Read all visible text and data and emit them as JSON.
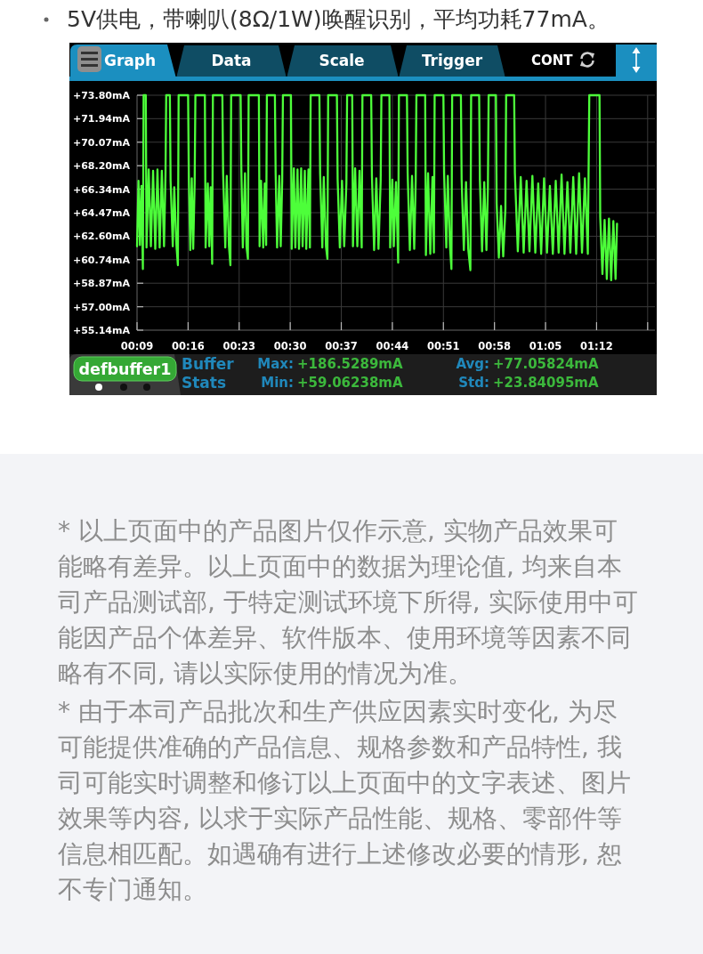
{
  "chart_data": {
    "type": "line",
    "title": "5V供电，带喇叭(8Ω/1W)唤醒识别，平均功耗77mA。",
    "annotations": [
      "Graph",
      "Data",
      "Scale",
      "Trigger",
      "CONT",
      "defbuffer1",
      "Buffer Stats",
      "Max: +186.5289mA",
      "Min: +59.06238mA",
      "Avg: +77.05824mA",
      "Std: +23.84095mA",
      "* 以上页面中的产品图片仅作示意, 实物产品效果可能略有差异。以上页面中的数据为理论值, 均来自本司产品测试部, 于特定测试环境下所得, 实际使用中可能因产品个体差异、软件版本、使用环境等因素不同略有不同, 请以实际使用的情况为准。",
      "* 由于本司产品批次和生产供应因素实时变化, 为尽可能提供准确的产品信息、规格参数和产品特性, 我司可能实时调整和修订以上页面中的文字表述、图片效果等内容, 以求于实际产品性能、规格、零部件等信息相匹配。如遇确有进行上述修改必要的情形, 恕不专门通知。"
    ],
    "x": [
      9.0,
      9.2,
      9.4,
      9.6,
      9.8,
      9.9,
      10.2,
      10.3,
      10.6,
      10.9,
      11.2,
      11.5,
      11.8,
      12.1,
      12.4,
      12.7,
      12.9,
      13.0,
      13.5,
      13.6,
      13.9,
      14.1,
      14.4,
      14.6,
      14.7,
      16.0,
      16.1,
      16.3,
      16.5,
      16.7,
      16.9,
      17.0,
      18.3,
      18.4,
      18.7,
      18.9,
      19.1,
      19.3,
      19.4,
      20.7,
      20.8,
      21.1,
      21.3,
      21.6,
      21.8,
      21.9,
      23.2,
      23.3,
      23.5,
      23.8,
      24.0,
      24.2,
      24.3,
      25.7,
      25.8,
      26.0,
      26.3,
      26.5,
      26.7,
      26.8,
      27.9,
      28.0,
      28.2,
      28.5,
      28.7,
      28.9,
      29.0,
      30.1,
      30.2,
      30.5,
      30.7,
      31.0,
      31.2,
      31.5,
      31.7,
      32.0,
      32.2,
      32.5,
      32.7,
      32.8,
      34.0,
      34.1,
      34.4,
      34.6,
      34.9,
      35.1,
      35.2,
      36.4,
      36.5,
      36.8,
      37.1,
      37.4,
      37.7,
      37.8,
      38.5,
      38.6,
      38.9,
      39.2,
      39.5,
      39.8,
      39.9,
      41.1,
      41.2,
      41.5,
      41.8,
      42.1,
      42.4,
      42.5,
      43.6,
      43.7,
      44.0,
      44.2,
      44.5,
      44.8,
      44.9,
      46.0,
      46.1,
      46.4,
      46.7,
      47.0,
      47.2,
      47.3,
      48.5,
      48.6,
      48.9,
      49.2,
      49.5,
      49.7,
      49.8,
      51.0,
      51.1,
      51.4,
      51.6,
      51.9,
      52.1,
      52.2,
      53.4,
      53.5,
      53.8,
      54.1,
      54.4,
      54.7,
      54.8,
      55.9,
      56.0,
      56.3,
      56.6,
      56.9,
      57.1,
      57.2,
      58.2,
      58.3,
      58.6,
      58.9,
      59.2,
      59.5,
      59.6,
      60.7,
      60.8,
      61.2,
      61.6,
      62.0,
      62.4,
      62.8,
      63.2,
      63.6,
      64.0,
      64.4,
      64.8,
      65.2,
      65.6,
      66.0,
      66.4,
      66.8,
      67.2,
      67.6,
      68.0,
      68.4,
      68.8,
      69.2,
      69.6,
      70.0,
      70.4,
      70.8,
      71.0,
      72.4,
      72.5,
      72.8,
      73.1,
      73.4,
      73.7,
      74.0,
      74.3,
      74.6,
      74.8
    ],
    "series": [
      {
        "color": "#4dff3a",
        "values": [
          61.8,
          67.0,
          61.9,
          66.6,
          60.0,
          73.8,
          73.8,
          61.7,
          67.9,
          61.8,
          67.8,
          61.6,
          67.9,
          61.7,
          67.8,
          61.8,
          67.5,
          73.8,
          73.8,
          67.0,
          61.8,
          66.5,
          61.9,
          60.3,
          73.8,
          73.8,
          67.4,
          61.5,
          67.2,
          61.6,
          66.8,
          73.8,
          73.8,
          61.7,
          66.8,
          61.8,
          66.5,
          60.4,
          73.8,
          73.8,
          67.6,
          61.7,
          67.4,
          61.8,
          60.3,
          73.8,
          73.8,
          67.9,
          61.7,
          67.6,
          61.8,
          60.8,
          73.8,
          73.8,
          61.8,
          67.0,
          61.7,
          66.8,
          61.9,
          73.8,
          73.8,
          67.6,
          61.7,
          67.4,
          61.8,
          67.0,
          73.8,
          73.8,
          61.6,
          68.0,
          61.7,
          67.9,
          61.6,
          68.0,
          61.8,
          67.8,
          61.6,
          67.9,
          61.7,
          73.8,
          73.8,
          67.6,
          61.7,
          67.3,
          61.8,
          60.8,
          73.8,
          73.8,
          67.1,
          61.7,
          67.0,
          61.8,
          66.8,
          73.8,
          73.8,
          61.8,
          68.0,
          61.8,
          67.8,
          61.7,
          73.8,
          73.8,
          67.4,
          61.5,
          67.2,
          61.6,
          67.0,
          73.8,
          73.8,
          61.7,
          67.1,
          61.8,
          66.9,
          60.5,
          73.8,
          73.8,
          67.6,
          61.5,
          67.4,
          61.6,
          67.0,
          73.8,
          73.8,
          61.1,
          67.6,
          61.2,
          67.3,
          61.3,
          73.8,
          73.8,
          67.6,
          61.7,
          67.4,
          61.8,
          60.0,
          73.8,
          73.8,
          67.1,
          61.5,
          66.9,
          61.6,
          59.9,
          73.8,
          73.8,
          67.1,
          61.4,
          66.9,
          61.5,
          66.5,
          73.8,
          73.8,
          65.2,
          60.9,
          65.0,
          61.0,
          64.8,
          73.8,
          73.8,
          67.6,
          61.4,
          67.3,
          61.3,
          67.0,
          61.4,
          67.4,
          61.3,
          66.8,
          61.2,
          67.2,
          61.3,
          66.6,
          61.2,
          67.0,
          61.3,
          67.5,
          61.2,
          66.9,
          61.3,
          67.3,
          61.2,
          67.6,
          61.3,
          67.2,
          61.2,
          73.8,
          73.8,
          64.1,
          59.6,
          63.9,
          59.2,
          64.0,
          59.1,
          63.8,
          59.2,
          63.6
        ]
      }
    ],
    "xlim": [
      9,
      80
    ],
    "xticks": [
      {
        "value": 9,
        "label": "00:09"
      },
      {
        "value": 16,
        "label": "00:16"
      },
      {
        "value": 23,
        "label": "00:23"
      },
      {
        "value": 30,
        "label": "00:30"
      },
      {
        "value": 37,
        "label": "00:37"
      },
      {
        "value": 44,
        "label": "00:44"
      },
      {
        "value": 51,
        "label": "00:51"
      },
      {
        "value": 58,
        "label": "00:58"
      },
      {
        "value": 65,
        "label": "01:05"
      },
      {
        "value": 72,
        "label": "01:12"
      },
      {
        "value": 79,
        "label": null
      }
    ],
    "ylim": [
      55.14,
      73.8
    ],
    "yticks": [
      {
        "value": 55.14,
        "label": "+55.14mA"
      },
      {
        "value": 57.0,
        "label": "+57.00mA"
      },
      {
        "value": 58.87,
        "label": "+58.87mA"
      },
      {
        "value": 60.74,
        "label": "+60.74mA"
      },
      {
        "value": 62.6,
        "label": "+62.60mA"
      },
      {
        "value": 64.47,
        "label": "+64.47mA"
      },
      {
        "value": 66.34,
        "label": "+66.34mA"
      },
      {
        "value": 68.2,
        "label": "+68.20mA"
      },
      {
        "value": 70.07,
        "label": "+70.07mA"
      },
      {
        "value": 71.94,
        "label": "+71.94mA"
      },
      {
        "value": 73.8,
        "label": "+73.80mA"
      }
    ],
    "grid": true
  }
}
